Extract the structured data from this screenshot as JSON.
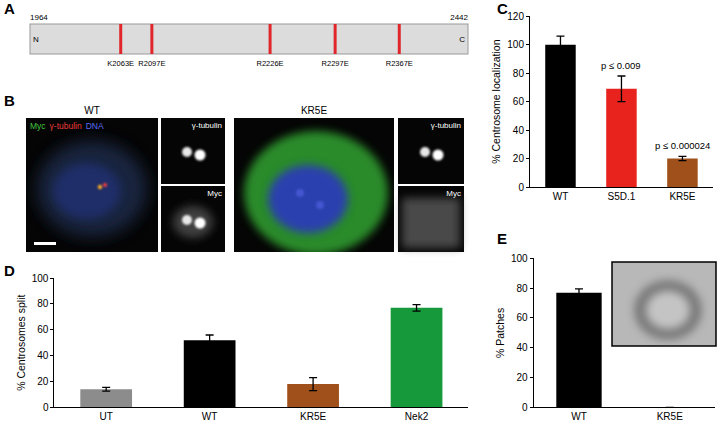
{
  "diagram": {
    "label": "A",
    "start": 1964,
    "end": 2442,
    "n_terminus": "N",
    "c_terminus": "C",
    "color": "#e0262b",
    "mutations": [
      {
        "label": "K2063E",
        "position": 2063
      },
      {
        "label": "R2097E",
        "position": 2097
      },
      {
        "label": "R2226E",
        "position": 2226
      },
      {
        "label": "R2297E",
        "position": 2297
      },
      {
        "label": "R2367E",
        "position": 2367
      }
    ]
  },
  "images": {
    "label": "B",
    "channels": [
      {
        "name": "Myc",
        "color": "#3fc43f"
      },
      {
        "name": "γ-tubulin",
        "color": "#e83a3a"
      },
      {
        "name": "DNA",
        "color": "#5a6cf0"
      }
    ],
    "panels": [
      {
        "title": "WT",
        "insets": [
          "γ-tubulin",
          "Myc"
        ]
      },
      {
        "title": "KR5E",
        "insets": [
          "γ-tubulin",
          "Myc"
        ]
      }
    ]
  },
  "chart_data": [
    {
      "label": "C",
      "type": "bar",
      "categories": [
        "WT",
        "S5D.1",
        "KR5E"
      ],
      "values": [
        100,
        69,
        20
      ],
      "errors": [
        6,
        9,
        1.5
      ],
      "colors": [
        "#000000",
        "#e8231e",
        "#a0501a"
      ],
      "y_label": "% Centrosome localization",
      "ylim": [
        0,
        120
      ],
      "yticks": [
        0,
        20,
        40,
        60,
        80,
        100,
        120
      ],
      "grid": false,
      "annotations": [
        {
          "text": "p ≤ 0.009",
          "category": "S5D.1"
        },
        {
          "text": "p ≤ 0.000024",
          "category": "KR5E"
        }
      ]
    },
    {
      "label": "D",
      "type": "bar",
      "categories": [
        "UT",
        "WT",
        "KR5E",
        "Nek2"
      ],
      "values": [
        14,
        52,
        18,
        77
      ],
      "errors": [
        1.5,
        4,
        5,
        2.5
      ],
      "colors": [
        "#8c8c8c",
        "#000000",
        "#a0501a",
        "#16993a"
      ],
      "y_label": "% Centrosomes split",
      "ylim": [
        0,
        100
      ],
      "yticks": [
        0,
        20,
        40,
        60,
        80,
        100
      ],
      "grid": false
    },
    {
      "label": "E",
      "type": "bar",
      "categories": [
        "WT",
        "KR5E"
      ],
      "values": [
        77,
        0
      ],
      "errors": [
        2.5,
        0
      ],
      "colors": [
        "#000000",
        "#a0501a"
      ],
      "y_label": "% Patches",
      "ylim": [
        0,
        100
      ],
      "yticks": [
        0,
        20,
        40,
        60,
        80,
        100
      ],
      "grid": false
    }
  ]
}
